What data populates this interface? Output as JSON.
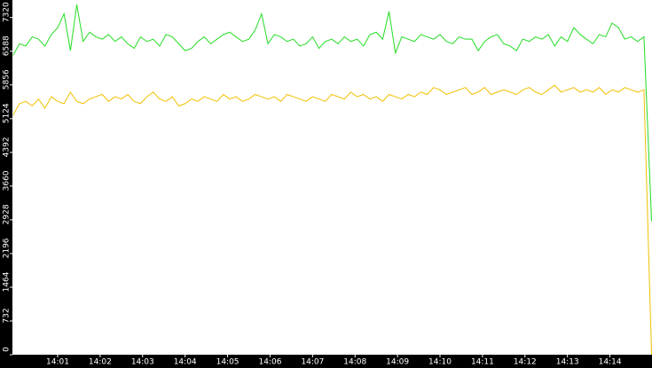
{
  "chart_data": {
    "type": "line",
    "x": [
      -0.05,
      0.1,
      0.25,
      0.4,
      0.55,
      0.7,
      0.85,
      1,
      1.15,
      1.3,
      1.45,
      1.6,
      1.75,
      1.9,
      2.05,
      2.2,
      2.35,
      2.5,
      2.65,
      2.8,
      2.95,
      3.1,
      3.25,
      3.4,
      3.55,
      3.7,
      3.85,
      4,
      4.15,
      4.3,
      4.45,
      4.6,
      4.75,
      4.9,
      5.05,
      5.2,
      5.35,
      5.5,
      5.65,
      5.8,
      5.95,
      6.1,
      6.25,
      6.4,
      6.55,
      6.7,
      6.85,
      7,
      7.15,
      7.3,
      7.45,
      7.6,
      7.75,
      7.9,
      8.05,
      8.2,
      8.35,
      8.5,
      8.65,
      8.8,
      8.95,
      9.1,
      9.25,
      9.4,
      9.55,
      9.7,
      9.85,
      10,
      10.15,
      10.3,
      10.45,
      10.6,
      10.75,
      10.9,
      11.05,
      11.2,
      11.35,
      11.5,
      11.65,
      11.8,
      11.95,
      12.1,
      12.25,
      12.4,
      12.55,
      12.7,
      12.85,
      13,
      13.15,
      13.3,
      13.45,
      13.6,
      13.75,
      13.9,
      14.05,
      14.2,
      14.35,
      14.5,
      14.65,
      14.8,
      14.98
    ],
    "series": [
      {
        "color": "#22dd22",
        "values": [
          6500,
          6750,
          6700,
          6900,
          6850,
          6700,
          6950,
          7100,
          7400,
          6600,
          7600,
          6800,
          7000,
          6900,
          6850,
          6950,
          6800,
          6900,
          6750,
          6650,
          6900,
          6800,
          6850,
          6700,
          6950,
          6900,
          6750,
          6600,
          6650,
          6800,
          6900,
          6750,
          6850,
          6950,
          7000,
          6900,
          6800,
          6850,
          7050,
          7400,
          6750,
          6950,
          6900,
          6800,
          6850,
          6700,
          6750,
          6900,
          6650,
          6800,
          6850,
          6750,
          6900,
          6800,
          6850,
          6700,
          6950,
          7000,
          6850,
          7450,
          6550,
          6900,
          6850,
          6800,
          6950,
          6900,
          6850,
          6950,
          6800,
          6750,
          6900,
          6850,
          6850,
          6600,
          6800,
          6900,
          6950,
          6750,
          6700,
          6600,
          6850,
          6800,
          6900,
          6850,
          6950,
          6700,
          6900,
          6800,
          7100,
          6950,
          6850,
          6750,
          6950,
          6900,
          7200,
          7100,
          6850,
          6900,
          6800,
          6900,
          2900
        ]
      },
      {
        "color": "#f0c000",
        "values": [
          5200,
          5450,
          5500,
          5400,
          5550,
          5350,
          5600,
          5500,
          5450,
          5700,
          5500,
          5450,
          5550,
          5600,
          5650,
          5500,
          5600,
          5550,
          5650,
          5500,
          5450,
          5600,
          5700,
          5550,
          5500,
          5600,
          5400,
          5450,
          5550,
          5500,
          5600,
          5550,
          5500,
          5650,
          5550,
          5600,
          5500,
          5550,
          5650,
          5600,
          5550,
          5600,
          5500,
          5650,
          5600,
          5550,
          5500,
          5600,
          5550,
          5500,
          5650,
          5600,
          5550,
          5700,
          5600,
          5650,
          5550,
          5600,
          5500,
          5650,
          5600,
          5550,
          5650,
          5600,
          5700,
          5650,
          5800,
          5750,
          5650,
          5700,
          5750,
          5800,
          5650,
          5700,
          5800,
          5650,
          5700,
          5750,
          5700,
          5650,
          5750,
          5800,
          5700,
          5650,
          5750,
          5850,
          5700,
          5750,
          5800,
          5700,
          5750,
          5700,
          5800,
          5650,
          5750,
          5700,
          5800,
          5750,
          5700,
          5750,
          0
        ]
      }
    ],
    "xlim": [
      -0.065,
      14.99
    ],
    "xticks": [
      {
        "value": 1,
        "label": "14:01"
      },
      {
        "value": 2,
        "label": "14:02"
      },
      {
        "value": 3,
        "label": "14:03"
      },
      {
        "value": 4,
        "label": "14:04"
      },
      {
        "value": 5,
        "label": "14:05"
      },
      {
        "value": 6,
        "label": "14:06"
      },
      {
        "value": 7,
        "label": "14:07"
      },
      {
        "value": 8,
        "label": "14:08"
      },
      {
        "value": 9,
        "label": "14:09"
      },
      {
        "value": 10,
        "label": "14:10"
      },
      {
        "value": 11,
        "label": "14:11"
      },
      {
        "value": 12,
        "label": "14:12"
      },
      {
        "value": 13,
        "label": "14:13"
      },
      {
        "value": 14,
        "label": "14:14"
      }
    ],
    "ylim": [
      0,
      7700
    ],
    "yticks": [
      0,
      732,
      1464,
      2196,
      2928,
      3660,
      4392,
      5124,
      5856,
      6588,
      7320
    ]
  }
}
